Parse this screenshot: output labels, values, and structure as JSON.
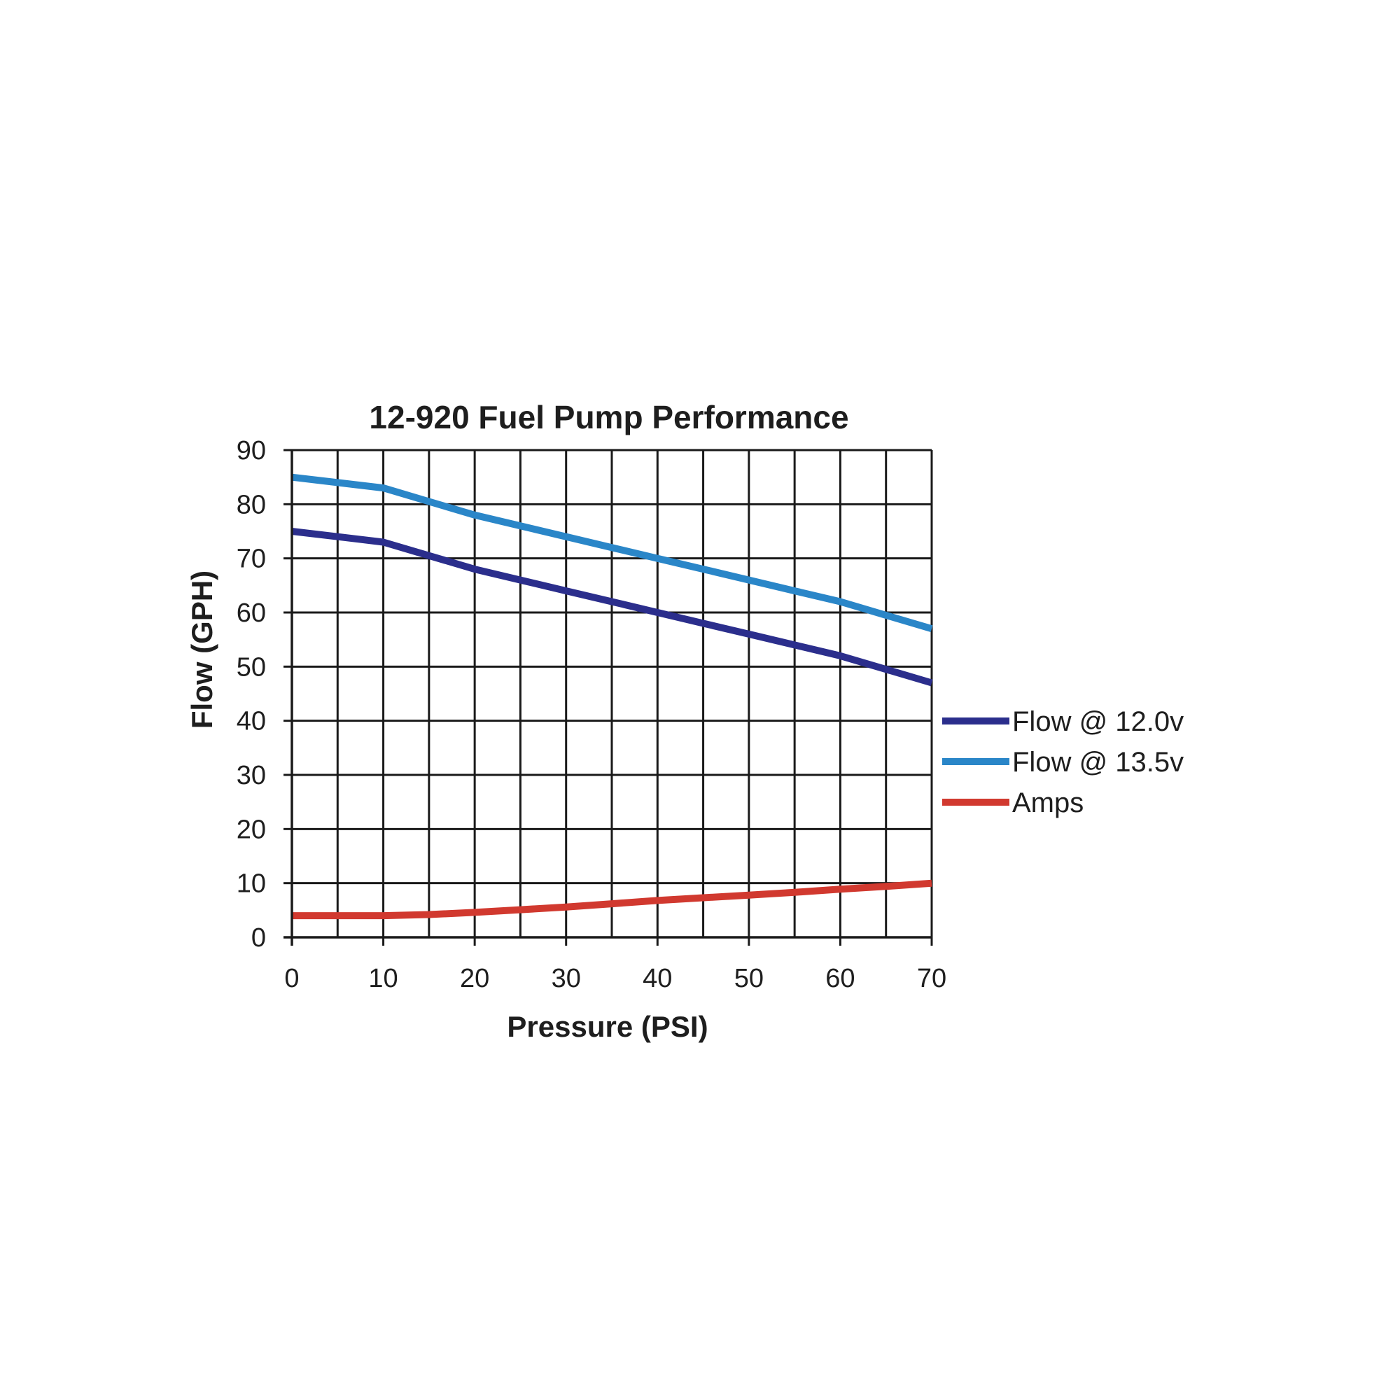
{
  "chart_data": {
    "type": "line",
    "title": "12-920 Fuel Pump Performance",
    "xlabel": "Pressure (PSI)",
    "ylabel": "Flow (GPH)",
    "xlim": [
      0,
      70
    ],
    "ylim": [
      0,
      90
    ],
    "x_ticks": [
      0,
      10,
      20,
      30,
      40,
      50,
      60,
      70
    ],
    "y_ticks": [
      0,
      10,
      20,
      30,
      40,
      50,
      60,
      70,
      80,
      90
    ],
    "x_grid_step": 5,
    "grid": true,
    "legend_position": "right",
    "x": [
      0,
      5,
      10,
      15,
      20,
      25,
      30,
      35,
      40,
      45,
      50,
      55,
      60,
      65,
      70
    ],
    "series": [
      {
        "name": "Flow @ 12.0v",
        "color": "#2b2e8c",
        "values": [
          75,
          74,
          73,
          70.5,
          68,
          66,
          64,
          62,
          60,
          58,
          56,
          54,
          52,
          49.5,
          47
        ]
      },
      {
        "name": "Flow @ 13.5v",
        "color": "#2a86c8",
        "values": [
          85,
          84,
          83,
          80.5,
          78,
          76,
          74,
          72,
          70,
          68,
          66,
          64,
          62,
          59.5,
          57
        ]
      },
      {
        "name": "Amps",
        "color": "#d1392f",
        "values": [
          4,
          4,
          4,
          4.2,
          4.6,
          5.1,
          5.6,
          6.2,
          6.8,
          7.3,
          7.8,
          8.3,
          8.9,
          9.4,
          10
        ]
      }
    ]
  }
}
